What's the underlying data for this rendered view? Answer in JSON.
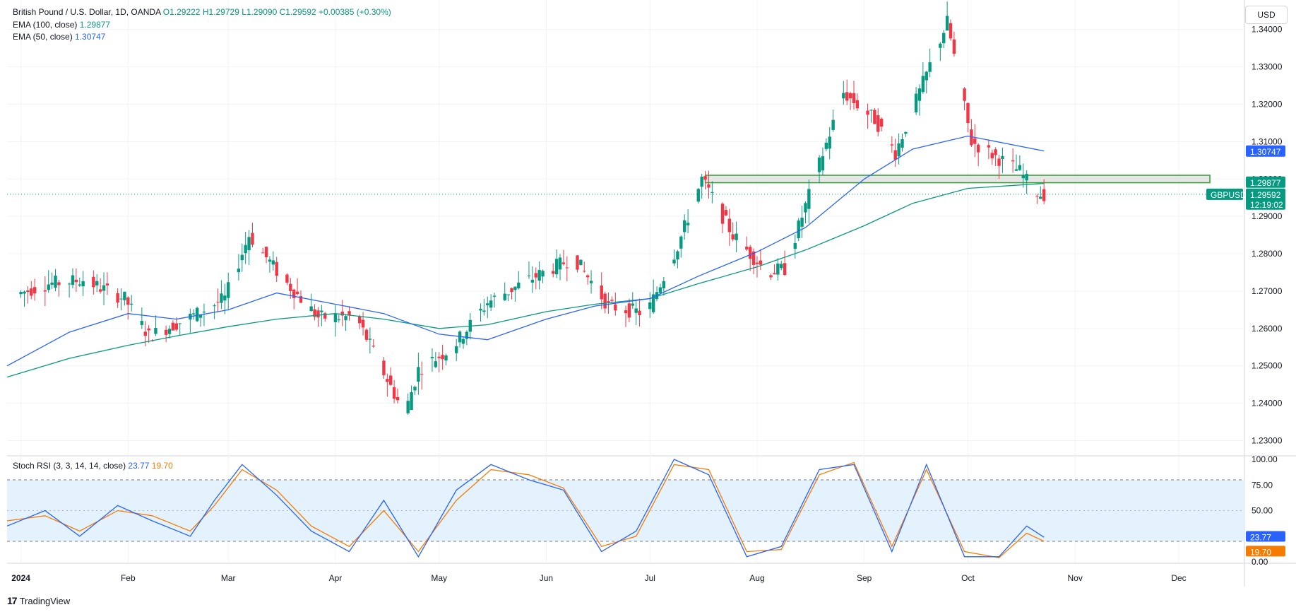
{
  "header": {
    "symbol": "British Pound / U.S. Dollar, 1D, OANDA",
    "open": "O1.29222",
    "high": "H1.29729",
    "low": "L1.29090",
    "close": "C1.29592",
    "change": "+0.00385 (+0.30%)"
  },
  "indicators": {
    "ema100_label": "EMA (100, close)",
    "ema100_value": "1.29877",
    "ema50_label": "EMA (50, close)",
    "ema50_value": "1.30747",
    "stoch_label": "Stoch RSI (3, 3, 14, 14, close)",
    "stoch_k_value": "23.77",
    "stoch_d_value": "19.70"
  },
  "currency": "USD",
  "branding": "TradingView",
  "price_badges": {
    "ema50": "1.30747",
    "ema100": "1.29877",
    "symbol": "GBPUSD",
    "last": "1.29592",
    "countdown": "12:19:02"
  },
  "colors": {
    "up": "#089981",
    "down": "#f23645",
    "ema50": "#2962ff",
    "ema100": "#089981",
    "stoch_k": "#2962ff",
    "stoch_d": "#f57c00",
    "zone_fill": "#e0e0e0",
    "zone_border": "#2e9e2e",
    "band_fill": "#e3f2fd"
  },
  "chart_data": [
    {
      "type": "candlestick",
      "title": "British Pound / U.S. Dollar, 1D, OANDA",
      "y_ticks": [
        "1.23000",
        "1.24000",
        "1.25000",
        "1.26000",
        "1.27000",
        "1.28000",
        "1.29000",
        "1.30000",
        "1.31000",
        "1.32000",
        "1.33000",
        "1.34000"
      ],
      "ylim": [
        1.2265,
        1.346
      ],
      "x_labels": [
        "2024",
        "Feb",
        "Mar",
        "Apr",
        "May",
        "Jun",
        "Jul",
        "Aug",
        "Sep",
        "Oct",
        "Nov",
        "Dec"
      ],
      "x_label_dates": [
        "2024-01-01",
        "2024-02-01",
        "2024-03-01",
        "2024-04-01",
        "2024-05-01",
        "2024-06-01",
        "2024-07-01",
        "2024-08-01",
        "2024-09-01",
        "2024-10-01",
        "2024-11-01",
        "2024-12-01"
      ],
      "xlim": [
        "2023-12-28",
        "2024-12-20"
      ],
      "support_zone": {
        "from": "2024-07-17",
        "to": "2024-12-10",
        "low": 1.299,
        "high": 1.301
      },
      "last_price": 1.29592,
      "series": [
        {
          "name": "EMA (100, close)",
          "dates": [
            "2023-12-28",
            "2024-01-15",
            "2024-02-01",
            "2024-02-15",
            "2024-03-01",
            "2024-03-15",
            "2024-04-01",
            "2024-04-15",
            "2024-05-01",
            "2024-05-15",
            "2024-06-01",
            "2024-06-15",
            "2024-07-01",
            "2024-07-15",
            "2024-08-01",
            "2024-08-15",
            "2024-09-01",
            "2024-09-15",
            "2024-10-01",
            "2024-10-23"
          ],
          "values": [
            1.247,
            1.252,
            1.2555,
            1.258,
            1.2605,
            1.2625,
            1.264,
            1.2625,
            1.26,
            1.261,
            1.2645,
            1.2665,
            1.268,
            1.272,
            1.2765,
            1.281,
            1.2875,
            1.2935,
            1.2975,
            1.2988
          ]
        },
        {
          "name": "EMA (50, close)",
          "dates": [
            "2023-12-28",
            "2024-01-15",
            "2024-02-01",
            "2024-02-15",
            "2024-03-01",
            "2024-03-15",
            "2024-04-01",
            "2024-04-15",
            "2024-05-01",
            "2024-05-15",
            "2024-06-01",
            "2024-06-15",
            "2024-07-01",
            "2024-07-15",
            "2024-08-01",
            "2024-08-15",
            "2024-09-01",
            "2024-09-15",
            "2024-10-01",
            "2024-10-23"
          ],
          "values": [
            1.25,
            1.259,
            1.264,
            1.2625,
            1.265,
            1.2695,
            1.2665,
            1.264,
            1.2585,
            1.257,
            1.2625,
            1.266,
            1.268,
            1.274,
            1.2805,
            1.287,
            1.3,
            1.308,
            1.3115,
            1.3075
          ]
        }
      ]
    },
    {
      "type": "line",
      "title": "Stoch RSI (3, 3, 14, 14, close)",
      "y_ticks": [
        "100.00",
        "75.00",
        "50.00",
        "25.00",
        "0.00"
      ],
      "ylim": [
        0,
        100
      ],
      "bands": {
        "upper": 80,
        "middle": 50,
        "lower": 20
      },
      "series": [
        {
          "name": "K",
          "dates": [
            "2023-12-28",
            "2024-01-08",
            "2024-01-18",
            "2024-01-29",
            "2024-02-08",
            "2024-02-19",
            "2024-02-26",
            "2024-03-05",
            "2024-03-15",
            "2024-03-25",
            "2024-04-05",
            "2024-04-15",
            "2024-04-25",
            "2024-05-06",
            "2024-05-16",
            "2024-05-27",
            "2024-06-06",
            "2024-06-17",
            "2024-06-27",
            "2024-07-08",
            "2024-07-18",
            "2024-07-29",
            "2024-08-08",
            "2024-08-19",
            "2024-08-29",
            "2024-09-09",
            "2024-09-19",
            "2024-09-30",
            "2024-10-10",
            "2024-10-18",
            "2024-10-23"
          ],
          "values": [
            35,
            50,
            25,
            55,
            40,
            25,
            60,
            95,
            65,
            30,
            10,
            60,
            5,
            70,
            95,
            80,
            70,
            10,
            30,
            100,
            85,
            5,
            15,
            90,
            95,
            10,
            95,
            5,
            5,
            35,
            24
          ]
        },
        {
          "name": "D",
          "dates": [
            "2023-12-28",
            "2024-01-08",
            "2024-01-18",
            "2024-01-29",
            "2024-02-08",
            "2024-02-19",
            "2024-02-26",
            "2024-03-05",
            "2024-03-15",
            "2024-03-25",
            "2024-04-05",
            "2024-04-15",
            "2024-04-25",
            "2024-05-06",
            "2024-05-16",
            "2024-05-27",
            "2024-06-06",
            "2024-06-17",
            "2024-06-27",
            "2024-07-08",
            "2024-07-18",
            "2024-07-29",
            "2024-08-08",
            "2024-08-19",
            "2024-08-29",
            "2024-09-09",
            "2024-09-19",
            "2024-09-30",
            "2024-10-10",
            "2024-10-18",
            "2024-10-23"
          ],
          "values": [
            40,
            45,
            30,
            50,
            45,
            30,
            55,
            90,
            70,
            35,
            15,
            50,
            10,
            60,
            90,
            85,
            72,
            15,
            25,
            95,
            90,
            10,
            12,
            85,
            97,
            15,
            90,
            10,
            4,
            28,
            20
          ]
        }
      ]
    }
  ]
}
